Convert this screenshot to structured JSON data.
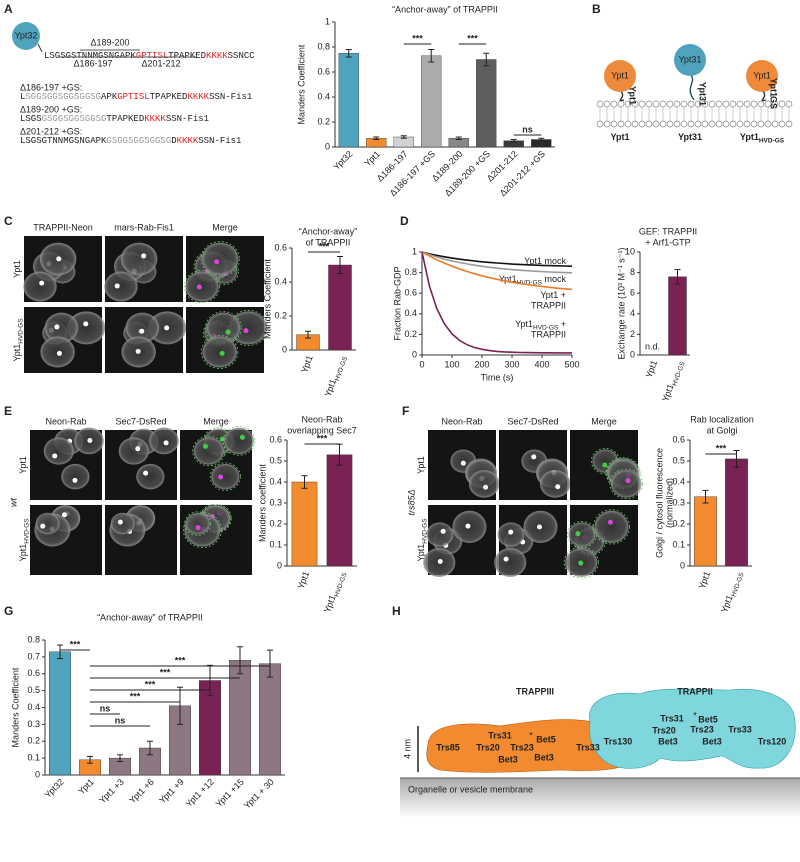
{
  "panel_labels": [
    "A",
    "B",
    "C",
    "D",
    "E",
    "F",
    "G",
    "H"
  ],
  "panel_a": {
    "circle_label": "Ypt32",
    "sequence": [
      {
        "text": "LSGSGSTNNMGSNGAPK",
        "color": "#222222"
      },
      {
        "text": "GPTISL",
        "color": "#e02020"
      },
      {
        "text": "TPAPKED",
        "color": "#222222"
      },
      {
        "text": "KKKK",
        "color": "#e02020"
      },
      {
        "text": "SSNCC",
        "color": "#222222"
      }
    ],
    "deletions": [
      "Δ189-200",
      "Δ186-197",
      "Δ201-212"
    ],
    "constructs": [
      {
        "label": "Δ186-197 +GS:",
        "sequence": [
          {
            "text": "L",
            "color": "#222222"
          },
          {
            "text": "SGGSGGSGGSGGSG",
            "color": "#999999"
          },
          {
            "text": "APK",
            "color": "#222222"
          },
          {
            "text": "GPTISL",
            "color": "#e02020"
          },
          {
            "text": "TPAPKED",
            "color": "#222222"
          },
          {
            "text": "KKKK",
            "color": "#e02020"
          },
          {
            "text": "SSN-Fis1",
            "color": "#222222"
          }
        ]
      },
      {
        "label": "Δ189-200 +GS:",
        "sequence": [
          {
            "text": "LSGS",
            "color": "#222222"
          },
          {
            "text": "GSGGSGGSGGSG",
            "color": "#999999"
          },
          {
            "text": "TPAPKED",
            "color": "#222222"
          },
          {
            "text": "KKKK",
            "color": "#e02020"
          },
          {
            "text": "SSN-Fis1",
            "color": "#222222"
          }
        ]
      },
      {
        "label": "Δ201-212 +GS:",
        "sequence": [
          {
            "text": "LSGSGTNNMGSNGAPK",
            "color": "#222222"
          },
          {
            "text": "GSGGSGGSGGSG",
            "color": "#999999"
          },
          {
            "text": "D",
            "color": "#222222"
          },
          {
            "text": "KKKK",
            "color": "#e02020"
          },
          {
            "text": "SSN-Fis1",
            "color": "#222222"
          }
        ]
      }
    ]
  },
  "panel_b": {
    "heads": [
      "Ypt1",
      "Ypt31",
      "Ypt1"
    ],
    "stalks": [
      "Ypt1",
      "Ypt31",
      "Ypt1",
      "GS"
    ],
    "labels": [
      {
        "text": "Ypt1"
      },
      {
        "text": "Ypt31"
      },
      {
        "text": "Ypt1",
        "sub": "HVD-GS"
      }
    ]
  },
  "micro_c": {
    "columns": [
      "TRAPPII-Neon",
      "mars-Rab-Fis1",
      "Merge"
    ],
    "rows": [
      {
        "text": "Ypt1"
      },
      {
        "text": "Ypt1",
        "sub": "HVD-GS"
      }
    ]
  },
  "micro_e": {
    "strain": "wt",
    "columns": [
      "Neon-Rab",
      "Sec7-DsRed",
      "Merge"
    ],
    "rows": [
      {
        "text": "Ypt1"
      },
      {
        "text": "Ypt1",
        "sub": "HVD-GS"
      }
    ]
  },
  "micro_f": {
    "strain": "trs85Δ",
    "columns": [
      "Neon-Rab",
      "Sec7-DsRed",
      "Merge"
    ],
    "rows": [
      {
        "text": "Ypt1"
      },
      {
        "text": "Ypt1",
        "sub": "HVD-GS"
      }
    ]
  },
  "panel_h": {
    "complexes": [
      {
        "name": "TRAPPIII",
        "subunits": [
          "Trs85",
          "Trs20",
          "Trs31",
          "Trs23",
          "Bet5",
          "Bet3",
          "Bet3",
          "Trs33"
        ]
      },
      {
        "name": "TRAPPII",
        "subunits": [
          "Trs130",
          "Trs31",
          "Trs20",
          "Bet5",
          "Trs23",
          "Bet3",
          "Bet3",
          "Trs33",
          "Trs120"
        ]
      }
    ],
    "marker": "*",
    "scale": "4 nm",
    "membrane": "Organelle or vesicle membrane"
  },
  "chart_data": [
    {
      "type": "bar",
      "title": [
        "“Anchor-away” of TRAPPII"
      ],
      "ylabel": [
        "Manders Coefficient"
      ],
      "categories": [
        "Ypt32",
        "Ypt1",
        "Δ186-197",
        "Δ186-197 +GS",
        "Δ189-200",
        "Δ189-200 +GS",
        "Δ201-212",
        "Δ201-212 +GS"
      ],
      "values": [
        0.75,
        0.07,
        0.08,
        0.73,
        0.07,
        0.7,
        0.05,
        0.06
      ],
      "errors": [
        0.03,
        0.01,
        0.01,
        0.05,
        0.01,
        0.05,
        0.01,
        0.01
      ],
      "colors": [
        "#4fa3bd",
        "#f28b2f",
        "#d2d2d2",
        "#ababab",
        "#878787",
        "#5e5e5e",
        "#3a3a3a",
        "#2a2a2a"
      ],
      "ylim": [
        0,
        1
      ],
      "yticks": [
        0,
        0.2,
        0.4,
        0.6,
        0.8,
        1
      ],
      "annotations": [
        "***",
        "***",
        "ns"
      ]
    },
    {
      "type": "bar",
      "title": [
        "“Anchor-away”",
        "of TRAPPII"
      ],
      "ylabel": [
        "Manders Coefficient"
      ],
      "categories": [
        "Ypt1",
        "Ypt1"
      ],
      "category_subscripts": [
        null,
        "HVD-GS"
      ],
      "values": [
        0.09,
        0.5
      ],
      "errors": [
        0.02,
        0.05
      ],
      "colors": [
        "#f28b2f",
        "#7a2253"
      ],
      "ylim": [
        0,
        0.6
      ],
      "yticks": [
        0,
        0.2,
        0.4,
        0.6
      ],
      "annotations": [
        "***"
      ]
    },
    {
      "type": "line",
      "xlabel": "Time (s)",
      "ylabel": [
        "Fraction Rab-GDP"
      ],
      "x": [
        0,
        25,
        50,
        75,
        100,
        125,
        150,
        175,
        200,
        225,
        250,
        275,
        300,
        325,
        350,
        375,
        400,
        425,
        450,
        475,
        500
      ],
      "series": [
        {
          "name": "Ypt1 mock",
          "color": "#111111",
          "values": [
            1,
            0.982,
            0.967,
            0.953,
            0.941,
            0.93,
            0.921,
            0.913,
            0.905,
            0.899,
            0.893,
            0.888,
            0.883,
            0.88,
            0.876,
            0.873,
            0.87,
            0.868,
            0.866,
            0.864,
            0.862
          ]
        },
        {
          "name": "Ypt1",
          "name_sub": "HVD-GS",
          "name_after": " mock",
          "color": "#9a9a9a",
          "values": [
            1,
            0.974,
            0.951,
            0.931,
            0.913,
            0.898,
            0.884,
            0.872,
            0.861,
            0.851,
            0.843,
            0.836,
            0.829,
            0.823,
            0.818,
            0.814,
            0.81,
            0.806,
            0.803,
            0.8,
            0.798
          ]
        },
        {
          "name": "Ypt1 +",
          "name_line2": "TRAPPII",
          "color": "#ef7a22",
          "values": [
            1,
            0.96,
            0.924,
            0.891,
            0.862,
            0.835,
            0.811,
            0.789,
            0.769,
            0.751,
            0.735,
            0.72,
            0.706,
            0.694,
            0.684,
            0.674,
            0.665,
            0.657,
            0.649,
            0.643,
            0.637
          ]
        },
        {
          "name": "Ypt1",
          "name_sub": "HVD-GS",
          "name_after": " +",
          "name_line2": "TRAPPII",
          "color": "#7a2253",
          "values": [
            1,
            0.666,
            0.446,
            0.301,
            0.205,
            0.142,
            0.1,
            0.073,
            0.055,
            0.043,
            0.035,
            0.03,
            0.027,
            0.024,
            0.023,
            0.022,
            0.021,
            0.021,
            0.02,
            0.02,
            0.02
          ]
        }
      ],
      "xlim": [
        0,
        500
      ],
      "xticks": [
        0,
        100,
        200,
        300,
        400,
        500
      ],
      "ylim": [
        0,
        1
      ],
      "yticks": [
        0,
        0.2,
        0.4,
        0.6,
        0.8,
        1
      ]
    },
    {
      "type": "bar",
      "title": [
        "GEF: TRAPPII",
        "+ Arf1-GTP"
      ],
      "ylabel": [
        "Exchange rate (10³ M⁻¹ s⁻¹)"
      ],
      "categories": [
        "Ypt1",
        "Ypt1"
      ],
      "category_subscripts": [
        null,
        "HVD-GS"
      ],
      "values": [
        null,
        7.6
      ],
      "errors": [
        null,
        0.7
      ],
      "value_labels": [
        "n.d.",
        null
      ],
      "colors": [
        "#f28b2f",
        "#7a2253"
      ],
      "ylim": [
        0,
        10
      ],
      "yticks": [
        0,
        2,
        4,
        6,
        8,
        10
      ]
    },
    {
      "type": "bar",
      "title": [
        "Neon-Rab",
        "overlapping Sec7"
      ],
      "ylabel": [
        "Manders coefficient"
      ],
      "categories": [
        "Ypt1",
        "Ypt1"
      ],
      "category_subscripts": [
        null,
        "HVD-GS"
      ],
      "values": [
        0.4,
        0.53
      ],
      "errors": [
        0.03,
        0.05
      ],
      "colors": [
        "#f28b2f",
        "#7a2253"
      ],
      "ylim": [
        0,
        0.6
      ],
      "yticks": [
        0,
        0.1,
        0.2,
        0.3,
        0.4,
        0.5,
        0.6
      ],
      "annotations": [
        "***"
      ]
    },
    {
      "type": "bar",
      "title": [
        "Rab localization",
        "at Golgi"
      ],
      "ylabel": [
        "Golgi / cytosol fluorescence",
        "(normalized)"
      ],
      "categories": [
        "Ypt1",
        "Ypt1"
      ],
      "category_subscripts": [
        null,
        "HVD-GS"
      ],
      "values": [
        0.33,
        0.51
      ],
      "errors": [
        0.03,
        0.04
      ],
      "colors": [
        "#f28b2f",
        "#7a2253"
      ],
      "ylim": [
        0,
        0.6
      ],
      "yticks": [
        0,
        0.1,
        0.2,
        0.3,
        0.4,
        0.5,
        0.6
      ],
      "annotations": [
        "***"
      ]
    },
    {
      "type": "bar",
      "title": [
        "“Anchor-away” of TRAPPII"
      ],
      "ylabel": [
        "Manders Coefficient"
      ],
      "categories": [
        "Ypt32",
        "Ypt1",
        "Ypt1 +3",
        "Ypt1 +6",
        "Ypt1 +9",
        "Ypt1 +12",
        "Ypt1 +15",
        "Ypt1 + 30"
      ],
      "values": [
        0.73,
        0.09,
        0.1,
        0.16,
        0.41,
        0.56,
        0.68,
        0.66
      ],
      "errors": [
        0.04,
        0.02,
        0.02,
        0.04,
        0.11,
        0.09,
        0.08,
        0.08
      ],
      "colors": [
        "#4fa3bd",
        "#f28b2f",
        "#8c7783",
        "#8c7783",
        "#8c7783",
        "#7a2253",
        "#8c7783",
        "#8c7783"
      ],
      "ylim": [
        0,
        0.8
      ],
      "yticks": [
        0,
        0.1,
        0.2,
        0.3,
        0.4,
        0.5,
        0.6,
        0.7,
        0.8
      ],
      "annotations": [
        "***",
        "ns",
        "ns",
        "***",
        "***",
        "***",
        "***"
      ]
    }
  ]
}
